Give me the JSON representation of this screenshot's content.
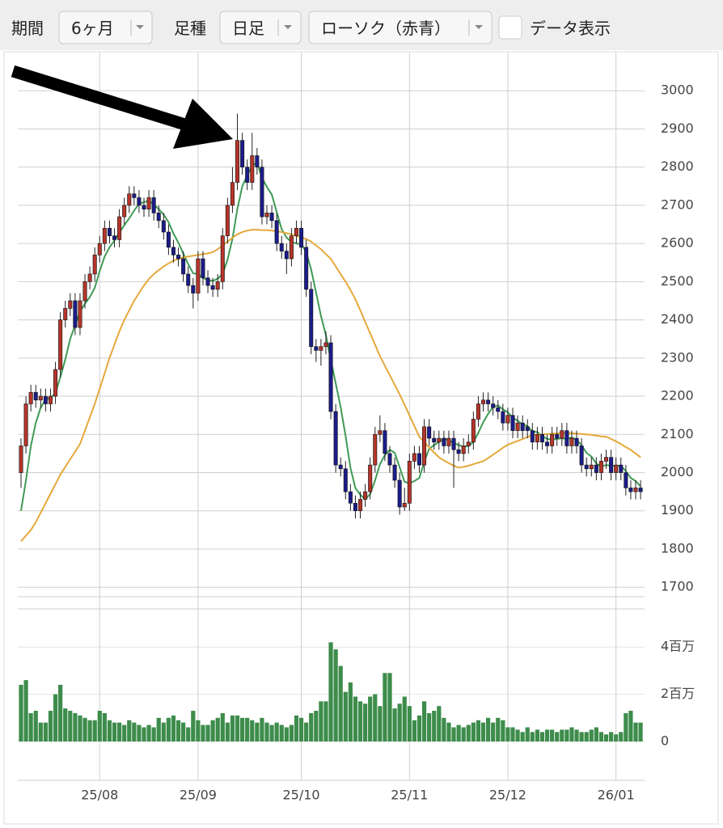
{
  "controls": {
    "period_label": "期間",
    "period_value": "6ヶ月",
    "bar_label": "足種",
    "bar_value": "日足",
    "style_value": "ローソク（赤青）",
    "data_toggle": "データ表示"
  },
  "chart_data": {
    "type": "candlestick",
    "grid": true,
    "up_color": "#b5352a",
    "down_color": "#1c1c8a",
    "categories": [
      null,
      null,
      null,
      null,
      null,
      null,
      null,
      null,
      null,
      null,
      null,
      null,
      null,
      null,
      null,
      null,
      "25/08",
      null,
      null,
      null,
      null,
      null,
      null,
      null,
      null,
      null,
      null,
      null,
      null,
      null,
      null,
      null,
      null,
      null,
      null,
      null,
      "25/09",
      null,
      null,
      null,
      null,
      null,
      null,
      null,
      null,
      null,
      null,
      null,
      null,
      null,
      null,
      null,
      null,
      null,
      null,
      null,
      null,
      "25/10",
      null,
      null,
      null,
      null,
      null,
      null,
      null,
      null,
      null,
      null,
      null,
      null,
      null,
      null,
      null,
      null,
      null,
      null,
      null,
      null,
      null,
      "25/11",
      null,
      null,
      null,
      null,
      null,
      null,
      null,
      null,
      null,
      null,
      null,
      null,
      null,
      null,
      null,
      null,
      null,
      null,
      null,
      "25/12",
      null,
      null,
      null,
      null,
      null,
      null,
      null,
      null,
      null,
      null,
      null,
      null,
      null,
      null,
      null,
      null,
      null,
      null,
      null,
      null,
      null,
      "26/01",
      null,
      null,
      null,
      null,
      null
    ],
    "open": [
      2000,
      2070,
      2180,
      2210,
      2190,
      2200,
      2180,
      2200,
      2270,
      2400,
      2430,
      2450,
      2380,
      2450,
      2500,
      2520,
      2570,
      2600,
      2640,
      2620,
      2610,
      2670,
      2700,
      2730,
      2720,
      2700,
      2690,
      2720,
      2680,
      2660,
      2630,
      2590,
      2570,
      2560,
      2520,
      2490,
      2470,
      2560,
      2510,
      2490,
      2480,
      2500,
      2620,
      2700,
      2760,
      2870,
      2800,
      2760,
      2830,
      2800,
      2670,
      2680,
      2660,
      2600,
      2580,
      2560,
      2620,
      2640,
      2590,
      2480,
      2330,
      2320,
      2330,
      2340,
      2160,
      2020,
      2010,
      1950,
      1920,
      1900,
      1930,
      1950,
      2020,
      2100,
      2110,
      2050,
      2020,
      1980,
      1910,
      1920,
      2030,
      2050,
      2020,
      2120,
      2090,
      2080,
      2090,
      2070,
      2090,
      2060,
      2050,
      2070,
      2080,
      2140,
      2180,
      2190,
      2180,
      2170,
      2160,
      2130,
      2150,
      2110,
      2130,
      2120,
      2110,
      2080,
      2100,
      2080,
      2070,
      2100,
      2090,
      2110,
      2070,
      2090,
      2070,
      2020,
      2010,
      2020,
      2000,
      2030,
      2040,
      2000,
      2020,
      2000,
      1960,
      1950,
      1960
    ],
    "high": [
      2090,
      2200,
      2230,
      2230,
      2220,
      2220,
      2220,
      2290,
      2420,
      2450,
      2470,
      2470,
      2470,
      2520,
      2540,
      2590,
      2620,
      2660,
      2660,
      2640,
      2690,
      2720,
      2750,
      2750,
      2740,
      2720,
      2740,
      2740,
      2700,
      2680,
      2650,
      2610,
      2590,
      2580,
      2540,
      2510,
      2580,
      2580,
      2530,
      2510,
      2520,
      2640,
      2720,
      2800,
      2940,
      2890,
      2820,
      2890,
      2850,
      2820,
      2700,
      2700,
      2680,
      2620,
      2600,
      2640,
      2660,
      2660,
      2610,
      2500,
      2350,
      2350,
      2370,
      2360,
      2180,
      2040,
      2030,
      1970,
      1940,
      1950,
      1970,
      2040,
      2120,
      2150,
      2130,
      2070,
      2040,
      2000,
      1960,
      2050,
      2070,
      2070,
      2140,
      2140,
      2110,
      2110,
      2110,
      2110,
      2110,
      2080,
      2090,
      2100,
      2160,
      2200,
      2210,
      2210,
      2200,
      2190,
      2180,
      2170,
      2170,
      2150,
      2150,
      2140,
      2130,
      2120,
      2120,
      2100,
      2120,
      2120,
      2130,
      2130,
      2110,
      2110,
      2090,
      2040,
      2040,
      2040,
      2050,
      2060,
      2060,
      2040,
      2040,
      2020,
      1980,
      1980,
      1980
    ],
    "low": [
      1960,
      2050,
      2160,
      2170,
      2170,
      2160,
      2160,
      2180,
      2250,
      2380,
      2410,
      2360,
      2360,
      2430,
      2480,
      2500,
      2550,
      2580,
      2600,
      2590,
      2590,
      2650,
      2680,
      2700,
      2680,
      2670,
      2670,
      2660,
      2640,
      2610,
      2570,
      2550,
      2540,
      2500,
      2470,
      2430,
      2450,
      2490,
      2470,
      2460,
      2460,
      2480,
      2600,
      2680,
      2740,
      2780,
      2740,
      2740,
      2780,
      2650,
      2650,
      2640,
      2580,
      2560,
      2520,
      2540,
      2600,
      2570,
      2460,
      2310,
      2290,
      2280,
      2310,
      2140,
      2000,
      1990,
      1930,
      1900,
      1880,
      1880,
      1910,
      1930,
      2000,
      2080,
      2030,
      2000,
      1960,
      1890,
      1900,
      1900,
      2010,
      2000,
      2000,
      2070,
      2060,
      2060,
      2050,
      2050,
      1960,
      2030,
      2030,
      2050,
      2060,
      2120,
      2160,
      2160,
      2150,
      2140,
      2110,
      2110,
      2090,
      2090,
      2090,
      2090,
      2060,
      2060,
      2060,
      2050,
      2050,
      2070,
      2070,
      2050,
      2050,
      2050,
      2000,
      1990,
      1990,
      1980,
      1980,
      2010,
      1980,
      1980,
      1980,
      1940,
      1930,
      1930,
      1930
    ],
    "close": [
      2070,
      2180,
      2210,
      2190,
      2200,
      2180,
      2200,
      2270,
      2400,
      2430,
      2450,
      2380,
      2450,
      2500,
      2520,
      2570,
      2600,
      2640,
      2620,
      2610,
      2670,
      2700,
      2730,
      2720,
      2700,
      2690,
      2720,
      2680,
      2660,
      2630,
      2590,
      2570,
      2560,
      2520,
      2490,
      2470,
      2560,
      2510,
      2490,
      2480,
      2500,
      2620,
      2700,
      2760,
      2870,
      2800,
      2760,
      2830,
      2800,
      2670,
      2680,
      2660,
      2600,
      2580,
      2560,
      2620,
      2640,
      2590,
      2480,
      2330,
      2320,
      2330,
      2340,
      2160,
      2020,
      2010,
      1950,
      1920,
      1900,
      1930,
      1950,
      2020,
      2100,
      2110,
      2050,
      2020,
      1980,
      1910,
      1920,
      2030,
      2050,
      2020,
      2120,
      2090,
      2080,
      2090,
      2070,
      2090,
      2060,
      2050,
      2070,
      2080,
      2140,
      2180,
      2190,
      2180,
      2170,
      2160,
      2130,
      2150,
      2110,
      2130,
      2110,
      2110,
      2080,
      2100,
      2080,
      2070,
      2100,
      2090,
      2110,
      2070,
      2090,
      2070,
      2020,
      2010,
      2020,
      2000,
      2030,
      2040,
      2000,
      2020,
      2000,
      1960,
      1950,
      1960,
      1950
    ],
    "moving_averages": [
      {
        "color": "#3f9a55",
        "values": [
          1900,
          1980,
          2070,
          2130,
          2170,
          2192,
          2196,
          2208,
          2250,
          2296,
          2350,
          2386,
          2422,
          2442,
          2460,
          2484,
          2528,
          2566,
          2590,
          2608,
          2628,
          2648,
          2666,
          2686,
          2704,
          2708,
          2712,
          2702,
          2690,
          2676,
          2656,
          2626,
          2602,
          2574,
          2546,
          2522,
          2520,
          2510,
          2504,
          2502,
          2508,
          2520,
          2558,
          2612,
          2690,
          2750,
          2778,
          2804,
          2812,
          2772,
          2748,
          2728,
          2682,
          2638,
          2616,
          2604,
          2600,
          2598,
          2578,
          2532,
          2472,
          2410,
          2360,
          2296,
          2234,
          2172,
          2096,
          2012,
          1960,
          1942,
          1930,
          1944,
          1980,
          2022,
          2046,
          2060,
          2052,
          2014,
          1976,
          1972,
          1978,
          1986,
          2028,
          2062,
          2072,
          2080,
          2090,
          2084,
          2078,
          2072,
          2068,
          2070,
          2080,
          2104,
          2132,
          2154,
          2172,
          2176,
          2166,
          2158,
          2144,
          2136,
          2126,
          2122,
          2108,
          2106,
          2096,
          2088,
          2086,
          2088,
          2090,
          2088,
          2092,
          2086,
          2072,
          2052,
          2042,
          2024,
          2016,
          2020,
          2018,
          2018,
          2018,
          2004,
          1986,
          1978,
          1964
        ]
      },
      {
        "color": "#e5a83a",
        "values": [
          1820,
          1835,
          1850,
          1870,
          1895,
          1920,
          1945,
          1970,
          1995,
          2015,
          2035,
          2055,
          2075,
          2110,
          2145,
          2180,
          2220,
          2260,
          2300,
          2335,
          2370,
          2400,
          2425,
          2450,
          2470,
          2490,
          2507,
          2520,
          2530,
          2540,
          2548,
          2555,
          2560,
          2563,
          2566,
          2568,
          2570,
          2572,
          2574,
          2577,
          2585,
          2595,
          2605,
          2615,
          2624,
          2630,
          2634,
          2636,
          2636,
          2635,
          2635,
          2634,
          2632,
          2630,
          2627,
          2624,
          2620,
          2616,
          2612,
          2605,
          2595,
          2585,
          2572,
          2560,
          2540,
          2520,
          2500,
          2478,
          2454,
          2425,
          2395,
          2365,
          2335,
          2305,
          2280,
          2255,
          2230,
          2205,
          2178,
          2150,
          2122,
          2094,
          2080,
          2066,
          2053,
          2040,
          2032,
          2025,
          2018,
          2013,
          2015,
          2018,
          2022,
          2026,
          2030,
          2038,
          2047,
          2056,
          2065,
          2073,
          2078,
          2083,
          2088,
          2093,
          2098,
          2099,
          2100,
          2101,
          2102,
          2103,
          2104,
          2104,
          2103,
          2102,
          2101,
          2100,
          2099,
          2097,
          2095,
          2094,
          2088,
          2082,
          2075,
          2067,
          2060,
          2050,
          2040
        ]
      }
    ],
    "ylim": [
      1675,
      3100
    ],
    "yticks": [
      1700,
      1800,
      1900,
      2000,
      2100,
      2200,
      2300,
      2400,
      2500,
      2600,
      2700,
      2800,
      2900,
      3000
    ],
    "volume": {
      "color": "#3d8c4b",
      "ylim": [
        0,
        5000000
      ],
      "yticks": [
        0,
        {
          "value": 2000000,
          "label": "2百万"
        },
        {
          "value": 4000000,
          "label": "4百万"
        }
      ],
      "values": [
        2400000,
        2600000,
        1200000,
        1300000,
        800000,
        800000,
        1300000,
        2000000,
        2400000,
        1400000,
        1300000,
        1200000,
        1100000,
        1000000,
        900000,
        900000,
        1300000,
        1200000,
        900000,
        800000,
        800000,
        700000,
        900000,
        800000,
        700000,
        600000,
        700000,
        600000,
        1000000,
        800000,
        1000000,
        1100000,
        900000,
        800000,
        600000,
        1300000,
        900000,
        700000,
        700000,
        900000,
        1000000,
        1200000,
        800000,
        1100000,
        1100000,
        1000000,
        1000000,
        900000,
        800000,
        1000000,
        800000,
        700000,
        800000,
        700000,
        600000,
        700000,
        1100000,
        1000000,
        800000,
        1200000,
        1300000,
        1700000,
        1700000,
        4200000,
        3900000,
        3200000,
        2100000,
        2500000,
        1900000,
        1700000,
        1600000,
        1900000,
        2000000,
        1500000,
        2900000,
        2900000,
        1400000,
        1600000,
        1900000,
        1500000,
        900000,
        1100000,
        1700000,
        1200000,
        1300000,
        1500000,
        1000000,
        800000,
        600000,
        700000,
        600000,
        700000,
        800000,
        900000,
        800000,
        1000000,
        800000,
        1000000,
        900000,
        600000,
        600000,
        500000,
        400000,
        600000,
        400000,
        500000,
        400000,
        500000,
        500000,
        400000,
        500000,
        500000,
        600000,
        500000,
        400000,
        400000,
        500000,
        600000,
        400000,
        300000,
        400000,
        300000,
        400000,
        1200000,
        1300000,
        800000,
        800000
      ]
    }
  }
}
